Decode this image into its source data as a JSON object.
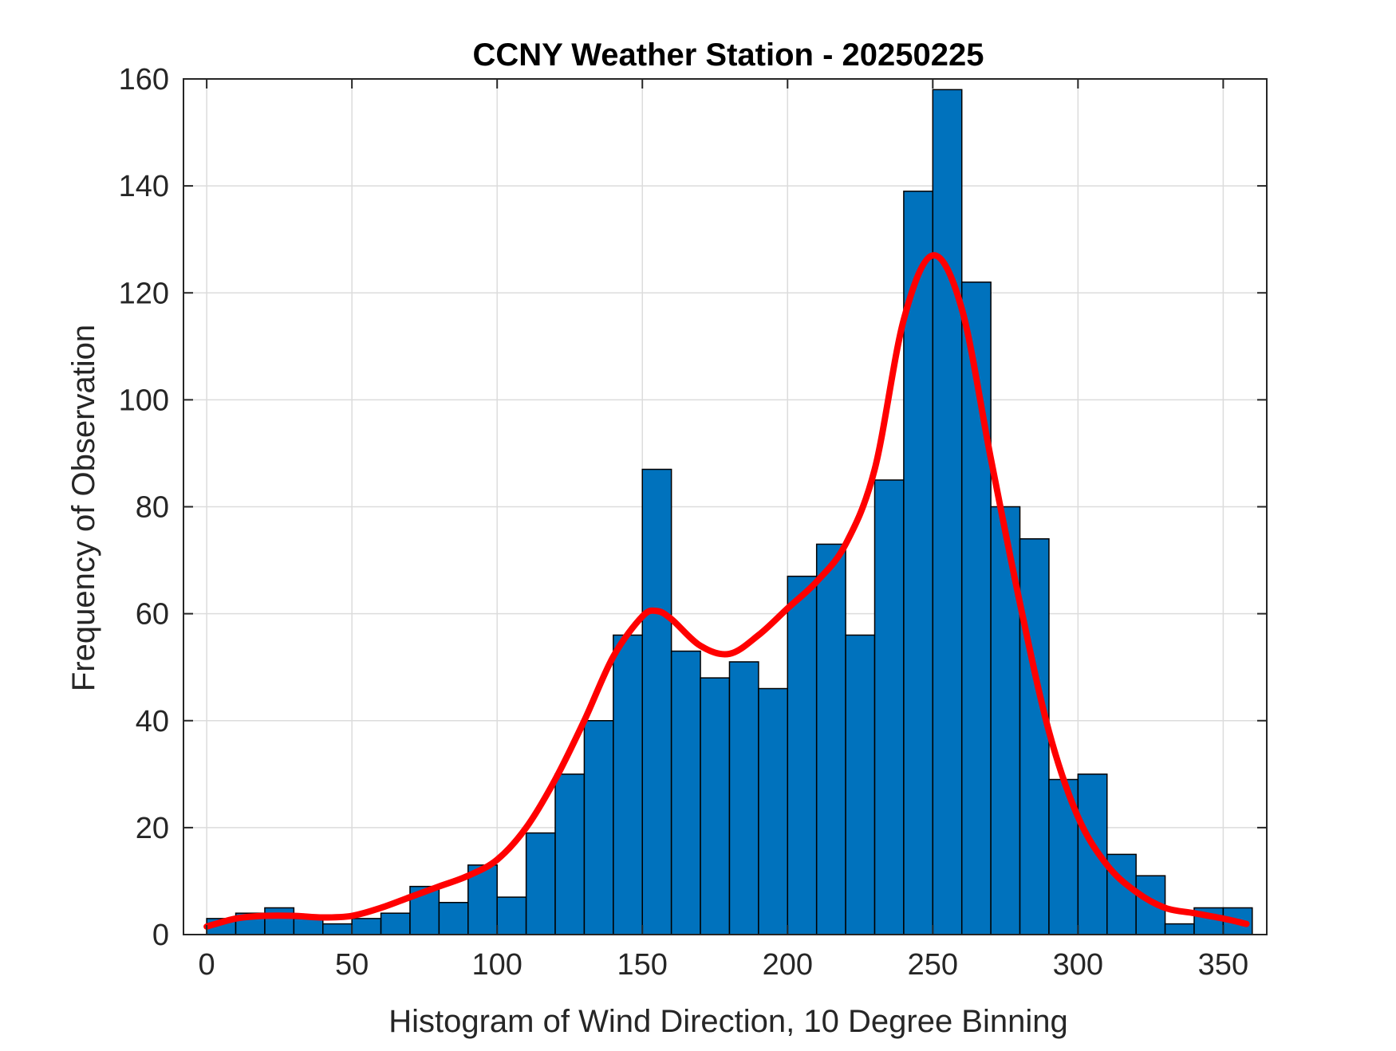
{
  "chart_data": {
    "type": "bar",
    "title": "CCNY Weather Station - 20250225",
    "xlabel": "Histogram of Wind Direction, 10 Degree Binning",
    "ylabel": "Frequency of Observation",
    "xlim": [
      -8,
      365
    ],
    "ylim": [
      0,
      160
    ],
    "xticks": [
      0,
      50,
      100,
      150,
      200,
      250,
      300,
      350
    ],
    "yticks": [
      0,
      20,
      40,
      60,
      80,
      100,
      120,
      140,
      160
    ],
    "grid": true,
    "bin_width": 10,
    "bin_edges": [
      0,
      10,
      20,
      30,
      40,
      50,
      60,
      70,
      80,
      90,
      100,
      110,
      120,
      130,
      140,
      150,
      160,
      170,
      180,
      190,
      200,
      210,
      220,
      230,
      240,
      250,
      260,
      270,
      280,
      290,
      300,
      310,
      320,
      330,
      340,
      350,
      360
    ],
    "values": [
      3,
      4,
      5,
      3,
      2,
      3,
      4,
      9,
      6,
      13,
      7,
      19,
      30,
      40,
      56,
      87,
      53,
      48,
      51,
      46,
      67,
      73,
      56,
      85,
      139,
      158,
      122,
      80,
      74,
      29,
      30,
      15,
      11,
      2,
      5,
      5
    ],
    "bar_color": "#0072BD",
    "fit_curve": {
      "color": "#FF0000",
      "x": [
        0,
        10,
        20,
        30,
        40,
        50,
        60,
        70,
        80,
        90,
        100,
        110,
        120,
        130,
        140,
        150,
        155,
        160,
        170,
        180,
        190,
        200,
        210,
        220,
        230,
        240,
        250,
        260,
        270,
        280,
        290,
        300,
        310,
        320,
        330,
        340,
        350,
        358
      ],
      "y": [
        1.5,
        3,
        3.5,
        3.5,
        3.2,
        3.5,
        5,
        7,
        9,
        11,
        14,
        20,
        29,
        40,
        52,
        59.5,
        60.5,
        59,
        54,
        52.5,
        56,
        61,
        66,
        73,
        87,
        115,
        127,
        117,
        89,
        62,
        38,
        22,
        13,
        8,
        5,
        4,
        3,
        2
      ]
    }
  }
}
